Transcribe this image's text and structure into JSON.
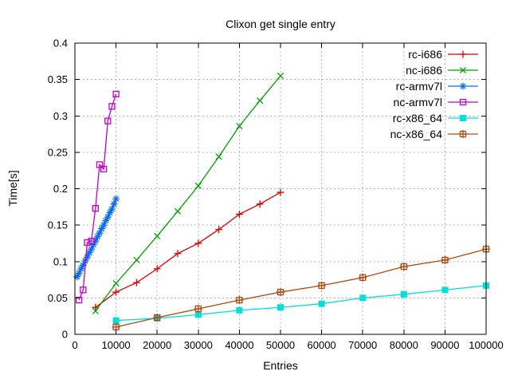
{
  "chart_data": {
    "type": "line",
    "title": "Clixon get single entry",
    "xlabel": "Entries",
    "ylabel": "Time[s]",
    "xlim": [
      0,
      100000
    ],
    "ylim": [
      0,
      0.4
    ],
    "x_ticks": [
      0,
      10000,
      20000,
      30000,
      40000,
      50000,
      60000,
      70000,
      80000,
      90000,
      100000
    ],
    "x_tick_labels": [
      "0",
      "10000",
      "20000",
      "30000",
      "40000",
      "50000",
      "60000",
      "70000",
      "80000",
      "90000",
      "100000"
    ],
    "y_ticks": [
      0,
      0.05,
      0.1,
      0.15,
      0.2,
      0.25,
      0.3,
      0.35,
      0.4
    ],
    "y_tick_labels": [
      "0",
      "0.05",
      "0.1",
      "0.15",
      "0.2",
      "0.25",
      "0.3",
      "0.35",
      "0.4"
    ],
    "grid": true,
    "legend_position": "top-right-inside",
    "series": [
      {
        "name": "rc-i686",
        "color": "#e00000",
        "marker": "plus",
        "x": [
          5000,
          10000,
          15000,
          20000,
          25000,
          30000,
          35000,
          40000,
          45000,
          50000
        ],
        "y": [
          0.037,
          0.058,
          0.071,
          0.09,
          0.111,
          0.125,
          0.144,
          0.165,
          0.179,
          0.195
        ]
      },
      {
        "name": "nc-i686",
        "color": "#00a000",
        "marker": "cross",
        "x": [
          5000,
          10000,
          15000,
          20000,
          25000,
          30000,
          35000,
          40000,
          45000,
          50000
        ],
        "y": [
          0.032,
          0.07,
          0.102,
          0.135,
          0.169,
          0.204,
          0.244,
          0.286,
          0.321,
          0.355
        ]
      },
      {
        "name": "rc-armv7l",
        "color": "#0a6cf0",
        "marker": "asterisk",
        "x": [
          500,
          1000,
          1500,
          2000,
          2500,
          3000,
          3500,
          4000,
          4500,
          5000,
          5500,
          6000,
          6500,
          7000,
          7500,
          8000,
          8500,
          9000,
          9500,
          10000
        ],
        "y": [
          0.079,
          0.084,
          0.09,
          0.095,
          0.101,
          0.106,
          0.112,
          0.117,
          0.123,
          0.128,
          0.134,
          0.139,
          0.145,
          0.15,
          0.156,
          0.161,
          0.167,
          0.172,
          0.179,
          0.186
        ]
      },
      {
        "name": "nc-armv7l",
        "color": "#c000cc",
        "marker": "open-square",
        "x": [
          1000,
          2000,
          3000,
          4000,
          5000,
          6000,
          7000,
          8000,
          9000,
          10000
        ],
        "y": [
          0.047,
          0.061,
          0.126,
          0.128,
          0.173,
          0.233,
          0.227,
          0.293,
          0.313,
          0.33
        ]
      },
      {
        "name": "rc-x86_64",
        "color": "#00dede",
        "marker": "filled-square",
        "x": [
          10000,
          20000,
          30000,
          40000,
          50000,
          60000,
          70000,
          80000,
          90000,
          100000
        ],
        "y": [
          0.019,
          0.022,
          0.027,
          0.033,
          0.037,
          0.042,
          0.05,
          0.055,
          0.061,
          0.067
        ]
      },
      {
        "name": "nc-x86_64",
        "color": "#b04a10",
        "marker": "square-plus",
        "x": [
          10000,
          20000,
          30000,
          40000,
          50000,
          60000,
          70000,
          80000,
          90000,
          100000
        ],
        "y": [
          0.01,
          0.023,
          0.035,
          0.047,
          0.058,
          0.067,
          0.078,
          0.093,
          0.102,
          0.117
        ]
      }
    ]
  }
}
